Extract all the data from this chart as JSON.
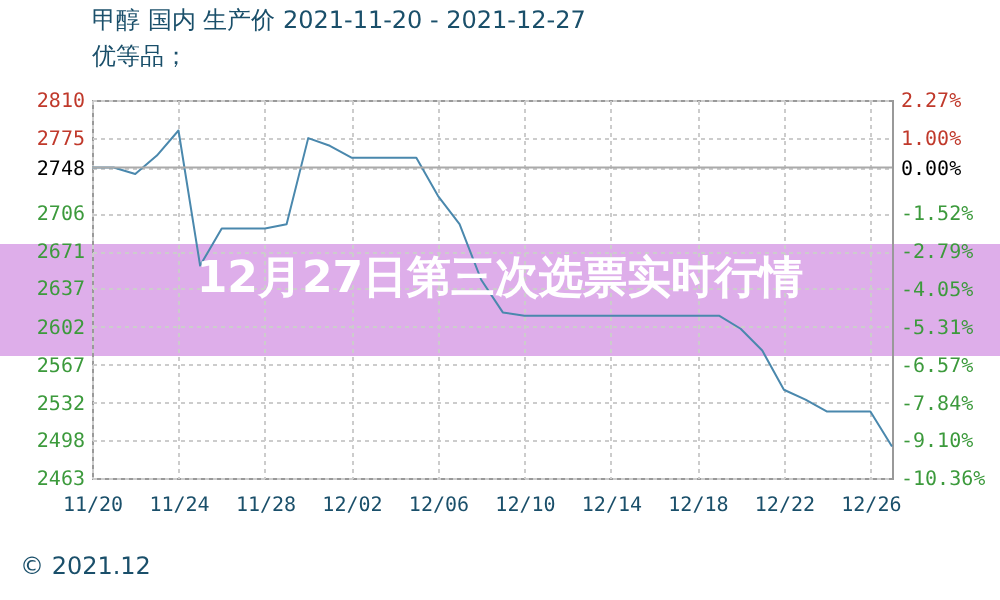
{
  "chart_data": {
    "type": "line",
    "title": "甲醇 国内 生产价 2021-11-20 - 2021-12-27",
    "subtitle": "优等品；",
    "annotations": [
      "12月27日第三次选票实时行情",
      "© 2021.12"
    ],
    "x": [
      "2021-11-20",
      "2021-11-21",
      "2021-11-22",
      "2021-11-23",
      "2021-11-24",
      "2021-11-25",
      "2021-11-26",
      "2021-11-27",
      "2021-11-28",
      "2021-11-29",
      "2021-11-30",
      "2021-12-01",
      "2021-12-02",
      "2021-12-03",
      "2021-12-04",
      "2021-12-05",
      "2021-12-06",
      "2021-12-07",
      "2021-12-08",
      "2021-12-09",
      "2021-12-10",
      "2021-12-11",
      "2021-12-12",
      "2021-12-13",
      "2021-12-14",
      "2021-12-15",
      "2021-12-16",
      "2021-12-17",
      "2021-12-18",
      "2021-12-19",
      "2021-12-20",
      "2021-12-21",
      "2021-12-22",
      "2021-12-23",
      "2021-12-24",
      "2021-12-25",
      "2021-12-26",
      "2021-12-27"
    ],
    "series": [
      {
        "color": "#4a88ad",
        "values": [
          2748,
          2748,
          2742,
          2759,
          2782,
          2658,
          2692,
          2692,
          2692,
          2696,
          2775,
          2768,
          2757,
          2757,
          2757,
          2757,
          2722,
          2696,
          2645,
          2615,
          2612,
          2612,
          2612,
          2612,
          2612,
          2612,
          2612,
          2612,
          2612,
          2612,
          2600,
          2580,
          2544,
          2535,
          2524,
          2524,
          2524,
          2492
        ]
      }
    ],
    "xlim": [
      "2021-11-20",
      "2021-12-27"
    ],
    "xticks": [
      {
        "value": "2021-11-20",
        "label": "11/20"
      },
      {
        "value": "2021-11-24",
        "label": "11/24"
      },
      {
        "value": "2021-11-28",
        "label": "11/28"
      },
      {
        "value": "2021-12-02",
        "label": "12/02"
      },
      {
        "value": "2021-12-06",
        "label": "12/06"
      },
      {
        "value": "2021-12-10",
        "label": "12/10"
      },
      {
        "value": "2021-12-14",
        "label": "12/14"
      },
      {
        "value": "2021-12-18",
        "label": "12/18"
      },
      {
        "value": "2021-12-22",
        "label": "12/22"
      },
      {
        "value": "2021-12-26",
        "label": "12/26"
      }
    ],
    "ylim": [
      2463,
      2810
    ],
    "yticks": [
      2463,
      2498,
      2532,
      2567,
      2602,
      2637,
      2671,
      2706,
      2748,
      2775,
      2810
    ],
    "y2lim": [
      -10.36,
      2.27
    ],
    "y2ticks": [
      {
        "value": -10.36,
        "label": "-10.36%"
      },
      {
        "value": -9.1,
        "label": "-9.10%"
      },
      {
        "value": -7.84,
        "label": "-7.84%"
      },
      {
        "value": -6.57,
        "label": "-6.57%"
      },
      {
        "value": -5.31,
        "label": "-5.31%"
      },
      {
        "value": -4.05,
        "label": "-4.05%"
      },
      {
        "value": -2.79,
        "label": "-2.79%"
      },
      {
        "value": -1.52,
        "label": "-1.52%"
      },
      {
        "value": 0,
        "label": "0.00%"
      },
      {
        "value": 1.0,
        "label": "1.00%"
      },
      {
        "value": 2.27,
        "label": "2.27%"
      }
    ],
    "ref_lines": [
      {
        "axis": "y",
        "value": 2748,
        "color": "#aaaaaa"
      }
    ],
    "grid": true,
    "marker": "none",
    "line_style": "solid"
  }
}
